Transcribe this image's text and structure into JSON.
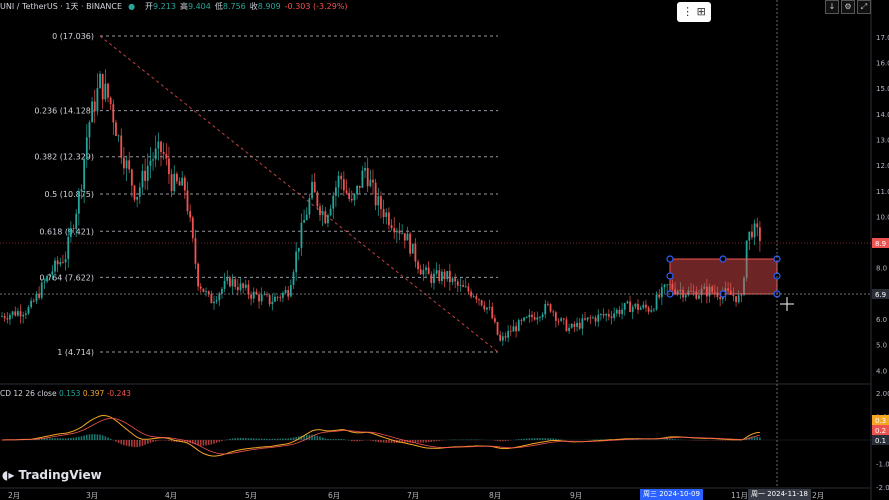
{
  "header": {
    "symbol": "UNI / TetherUS · 1天 · BINANCE",
    "open_label": "开",
    "open_value": "9.213",
    "high_label": "高",
    "high_value": "9.404",
    "low_label": "低",
    "low_value": "8.756",
    "close_label": "收",
    "close_value": "8.909",
    "change": "-0.303 (-3.29%)"
  },
  "fib_levels": [
    {
      "label": "0 (17.036)",
      "price": 17.036
    },
    {
      "label": "0.236 (14.128)",
      "price": 14.128
    },
    {
      "label": "0.382 (12.329)",
      "price": 12.329
    },
    {
      "label": "0.5 (10.875)",
      "price": 10.875
    },
    {
      "label": "0.618 (9.421)",
      "price": 9.421
    },
    {
      "label": "0.764 (7.622)",
      "price": 7.622
    },
    {
      "label": "1 (4.714)",
      "price": 4.714
    }
  ],
  "price_axis": [
    "17.0",
    "16.0",
    "15.0",
    "14.0",
    "13.0",
    "12.0",
    "11.0",
    "10.0",
    "9.0",
    "8.0",
    "7.0",
    "6.0",
    "5.0",
    "4.0"
  ],
  "price_badges": [
    {
      "text": "8.9",
      "color": "#ef5350"
    },
    {
      "text": "6.9",
      "color": "#2a2e39"
    }
  ],
  "macd": {
    "label": "CD 12 26 close",
    "macd": "0.153",
    "signal": "0.397",
    "hist": "-0.243",
    "axis": [
      "2.00",
      "1.00",
      "0.00",
      "-1.00",
      "-2.00"
    ]
  },
  "time_axis": [
    {
      "label": "2月",
      "x": 8
    },
    {
      "label": "3月",
      "x": 86
    },
    {
      "label": "4月",
      "x": 165
    },
    {
      "label": "5月",
      "x": 245
    },
    {
      "label": "6月",
      "x": 328
    },
    {
      "label": "7月",
      "x": 407
    },
    {
      "label": "8月",
      "x": 489
    },
    {
      "label": "9月",
      "x": 570
    },
    {
      "label": "11月",
      "x": 731
    },
    {
      "label": "2月",
      "x": 812
    }
  ],
  "date_badges": [
    {
      "text": "周三 2024-10-09",
      "color": "#2962ff"
    },
    {
      "text": "周一 2024-11-18",
      "color": "#363a45"
    }
  ],
  "logo": "TradingView",
  "icons": {
    "layout": "layout-grid-icon",
    "download": "download-icon",
    "settings": "gear-icon",
    "fullscreen": "fullscreen-icon"
  }
}
